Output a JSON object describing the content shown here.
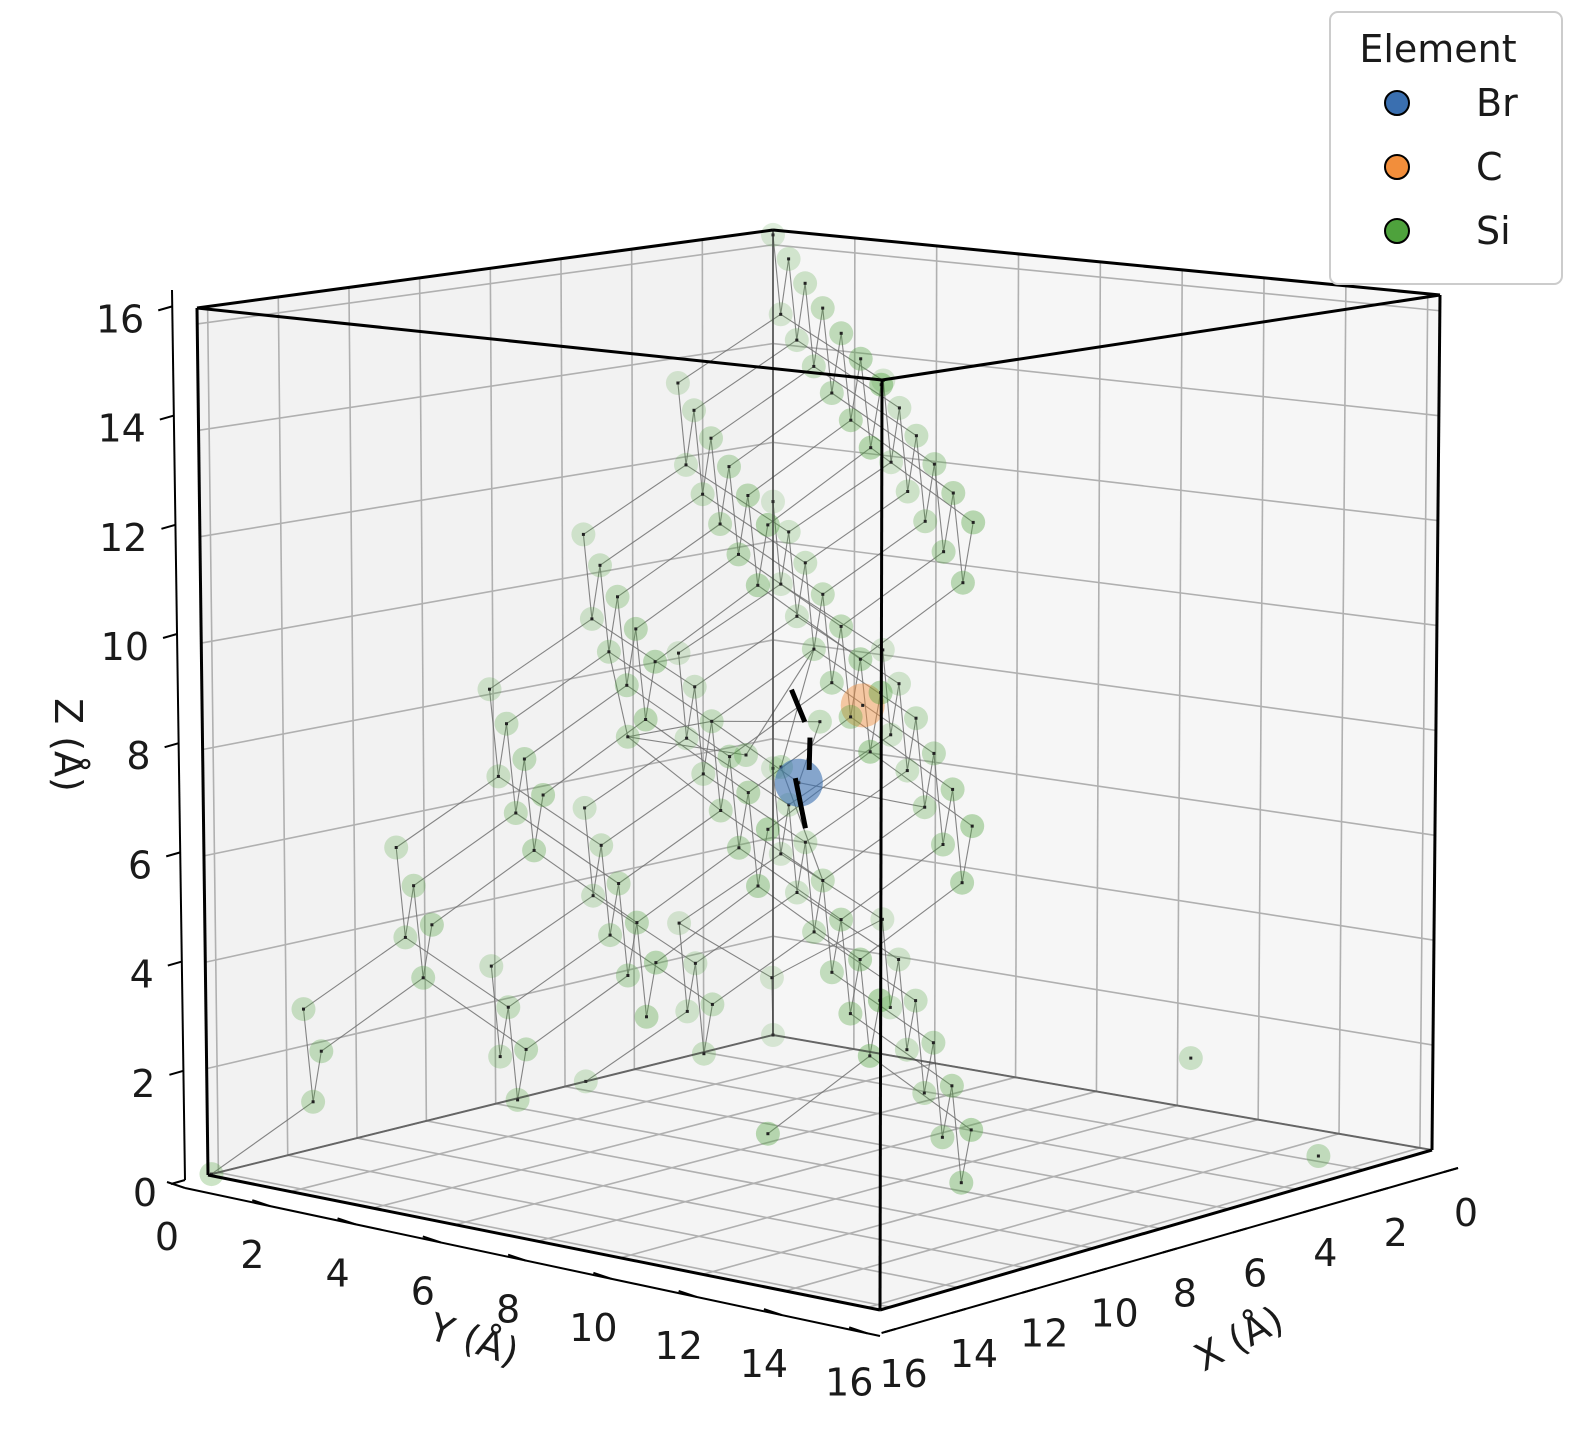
{
  "chart_data": {
    "type": "scatter3d",
    "title": "",
    "xlabel": "X (Å)",
    "ylabel": "Y (Å)",
    "zlabel": "Z (Å)",
    "xlim": [
      0,
      16.3
    ],
    "ylim": [
      0,
      16.3
    ],
    "zlim": [
      0,
      16.3
    ],
    "x_ticks": [
      "0",
      "2",
      "4",
      "6",
      "8",
      "10",
      "12",
      "14",
      "16"
    ],
    "y_ticks": [
      "0",
      "2",
      "4",
      "6",
      "8",
      "10",
      "12",
      "14",
      "16"
    ],
    "z_ticks": [
      "0",
      "2",
      "4",
      "6",
      "8",
      "10",
      "12",
      "14",
      "16"
    ],
    "grid": true,
    "legend": {
      "title": "Element",
      "placement": "top-right",
      "entries": [
        {
          "label": "Br",
          "color": "#3a6fb0"
        },
        {
          "label": "C",
          "color": "#f28e3b"
        },
        {
          "label": "Si",
          "color": "#4ea23c"
        }
      ]
    },
    "series": [
      {
        "name": "Br",
        "color": "#3a6fb0",
        "points": [
          [
            8.2,
            7.6,
            7.2
          ]
        ]
      },
      {
        "name": "C",
        "color": "#f28e3b",
        "points": [
          [
            5.4,
            6.8,
            8.2
          ]
        ]
      },
      {
        "name": "Si",
        "color": "#4ea23c",
        "points": [
          [
            0,
            0,
            16.2
          ],
          [
            0,
            2.7,
            13.5
          ],
          [
            0,
            0,
            10.8
          ],
          [
            0,
            2.7,
            8.1
          ],
          [
            0,
            0,
            5.4
          ],
          [
            0,
            2.7,
            2.7
          ],
          [
            0,
            0,
            0
          ],
          [
            1.35,
            1.35,
            14.85
          ],
          [
            1.35,
            4.05,
            12.15
          ],
          [
            1.35,
            1.35,
            9.45
          ],
          [
            1.35,
            4.05,
            6.75
          ],
          [
            1.35,
            1.35,
            4.05
          ],
          [
            1.35,
            4.05,
            1.35
          ],
          [
            2.7,
            0,
            13.5
          ],
          [
            2.7,
            2.7,
            16.2
          ],
          [
            2.7,
            5.4,
            13.5
          ],
          [
            2.7,
            0,
            8.1
          ],
          [
            2.7,
            2.7,
            10.8
          ],
          [
            2.7,
            5.4,
            8.1
          ],
          [
            2.7,
            0,
            2.7
          ],
          [
            2.7,
            2.7,
            5.4
          ],
          [
            2.7,
            5.4,
            2.7
          ],
          [
            4.05,
            1.35,
            12.15
          ],
          [
            4.05,
            4.05,
            14.85
          ],
          [
            4.05,
            6.75,
            12.15
          ],
          [
            4.05,
            1.35,
            6.75
          ],
          [
            4.05,
            4.05,
            9.45
          ],
          [
            4.05,
            6.75,
            6.75
          ],
          [
            4.05,
            1.35,
            1.35
          ],
          [
            4.05,
            4.05,
            4.05
          ],
          [
            4.05,
            6.75,
            1.35
          ],
          [
            5.4,
            0,
            10.8
          ],
          [
            5.4,
            2.7,
            13.5
          ],
          [
            5.4,
            5.4,
            16.2
          ],
          [
            5.4,
            8.1,
            13.5
          ],
          [
            5.4,
            0,
            5.4
          ],
          [
            5.4,
            2.7,
            8.1
          ],
          [
            5.4,
            5.4,
            10.8
          ],
          [
            5.4,
            8.1,
            8.1
          ],
          [
            5.4,
            0,
            0
          ],
          [
            5.4,
            2.7,
            2.7
          ],
          [
            5.4,
            5.4,
            5.4
          ],
          [
            5.4,
            8.1,
            2.7
          ],
          [
            6.75,
            1.35,
            9.45
          ],
          [
            6.75,
            4.05,
            12.15
          ],
          [
            6.75,
            6.75,
            14.85
          ],
          [
            6.75,
            9.45,
            12.15
          ],
          [
            6.75,
            1.35,
            4.05
          ],
          [
            6.75,
            4.05,
            6.75
          ],
          [
            6.75,
            6.75,
            9.45
          ],
          [
            6.75,
            9.45,
            6.75
          ],
          [
            6.75,
            4.05,
            1.35
          ],
          [
            6.75,
            6.75,
            4.05
          ],
          [
            6.75,
            9.45,
            1.35
          ],
          [
            8.1,
            0,
            8.1
          ],
          [
            8.1,
            2.7,
            10.8
          ],
          [
            8.1,
            5.4,
            13.5
          ],
          [
            8.1,
            8.1,
            16.2
          ],
          [
            8.1,
            10.8,
            13.5
          ],
          [
            8.1,
            0,
            2.7
          ],
          [
            8.1,
            2.7,
            5.4
          ],
          [
            8.1,
            5.4,
            8.1
          ],
          [
            8.1,
            8.1,
            10.8
          ],
          [
            8.1,
            10.8,
            8.1
          ],
          [
            8.1,
            5.4,
            2.7
          ],
          [
            8.1,
            8.1,
            5.4
          ],
          [
            8.1,
            10.8,
            2.7
          ],
          [
            9.45,
            1.35,
            6.75
          ],
          [
            9.45,
            4.05,
            9.45
          ],
          [
            9.45,
            6.75,
            12.15
          ],
          [
            9.45,
            9.45,
            14.85
          ],
          [
            9.45,
            12.15,
            12.15
          ],
          [
            9.45,
            1.35,
            1.35
          ],
          [
            9.45,
            4.05,
            4.05
          ],
          [
            9.45,
            6.75,
            6.75
          ],
          [
            9.45,
            9.45,
            9.45
          ],
          [
            9.45,
            12.15,
            6.75
          ],
          [
            9.45,
            9.45,
            4.05
          ],
          [
            9.45,
            12.15,
            1.35
          ],
          [
            10.8,
            0,
            5.4
          ],
          [
            10.8,
            2.7,
            8.1
          ],
          [
            10.8,
            5.4,
            10.8
          ],
          [
            10.8,
            8.1,
            13.5
          ],
          [
            10.8,
            10.8,
            16.2
          ],
          [
            10.8,
            13.5,
            13.5
          ],
          [
            10.8,
            2.7,
            2.7
          ],
          [
            10.8,
            5.4,
            5.4
          ],
          [
            10.8,
            8.1,
            8.1
          ],
          [
            10.8,
            10.8,
            10.8
          ],
          [
            10.8,
            13.5,
            8.1
          ],
          [
            10.8,
            10.8,
            5.4
          ],
          [
            10.8,
            13.5,
            2.7
          ],
          [
            12.15,
            1.35,
            4.05
          ],
          [
            12.15,
            4.05,
            6.75
          ],
          [
            12.15,
            6.75,
            9.45
          ],
          [
            12.15,
            9.45,
            12.15
          ],
          [
            12.15,
            12.15,
            14.85
          ],
          [
            12.15,
            14.85,
            12.15
          ],
          [
            12.15,
            4.05,
            1.35
          ],
          [
            12.15,
            6.75,
            4.05
          ],
          [
            12.15,
            9.45,
            6.75
          ],
          [
            12.15,
            12.15,
            9.45
          ],
          [
            12.15,
            14.85,
            6.75
          ],
          [
            12.15,
            12.15,
            4.05
          ],
          [
            12.15,
            14.85,
            1.35
          ],
          [
            13.5,
            0,
            2.7
          ],
          [
            13.5,
            2.7,
            5.4
          ],
          [
            13.5,
            5.4,
            8.1
          ],
          [
            13.5,
            8.1,
            10.8
          ],
          [
            13.5,
            10.8,
            13.5
          ],
          [
            13.5,
            13.5,
            16.2
          ],
          [
            13.5,
            16.2,
            13.5
          ],
          [
            13.5,
            5.4,
            2.7
          ],
          [
            13.5,
            8.1,
            5.4
          ],
          [
            13.5,
            10.8,
            8.1
          ],
          [
            13.5,
            13.5,
            10.8
          ],
          [
            13.5,
            16.2,
            8.1
          ],
          [
            13.5,
            13.5,
            5.4
          ],
          [
            13.5,
            16.2,
            2.7
          ],
          [
            14.85,
            1.35,
            1.35
          ],
          [
            14.85,
            4.05,
            4.05
          ],
          [
            14.85,
            6.75,
            6.75
          ],
          [
            14.85,
            9.45,
            9.45
          ],
          [
            14.85,
            12.15,
            12.15
          ],
          [
            14.85,
            14.85,
            14.85
          ],
          [
            14.85,
            9.45,
            4.05
          ],
          [
            14.85,
            12.15,
            6.75
          ],
          [
            14.85,
            14.85,
            9.45
          ],
          [
            14.85,
            14.85,
            4.05
          ],
          [
            16.2,
            0,
            0
          ],
          [
            16.2,
            2.7,
            2.7
          ],
          [
            16.2,
            5.4,
            5.4
          ],
          [
            16.2,
            8.1,
            8.1
          ],
          [
            16.2,
            10.8,
            10.8
          ],
          [
            16.2,
            13.5,
            13.5
          ],
          [
            16.2,
            16.2,
            16.2
          ],
          [
            16.2,
            10.8,
            5.4
          ],
          [
            16.2,
            13.5,
            8.1
          ],
          [
            16.2,
            16.2,
            10.8
          ],
          [
            16.2,
            16.2,
            5.4
          ],
          [
            16.2,
            13.5,
            2.7
          ],
          [
            6.4,
            6.6,
            8.0
          ],
          [
            8.3,
            6.4,
            7.6
          ],
          [
            8.0,
            7.0,
            7.4
          ],
          [
            10.4,
            5.3,
            8.1
          ],
          [
            1.2,
            1.0,
            1.5
          ],
          [
            3.0,
            16.0,
            0.4
          ],
          [
            0.8,
            11.0,
            1.2
          ]
        ]
      }
    ]
  }
}
